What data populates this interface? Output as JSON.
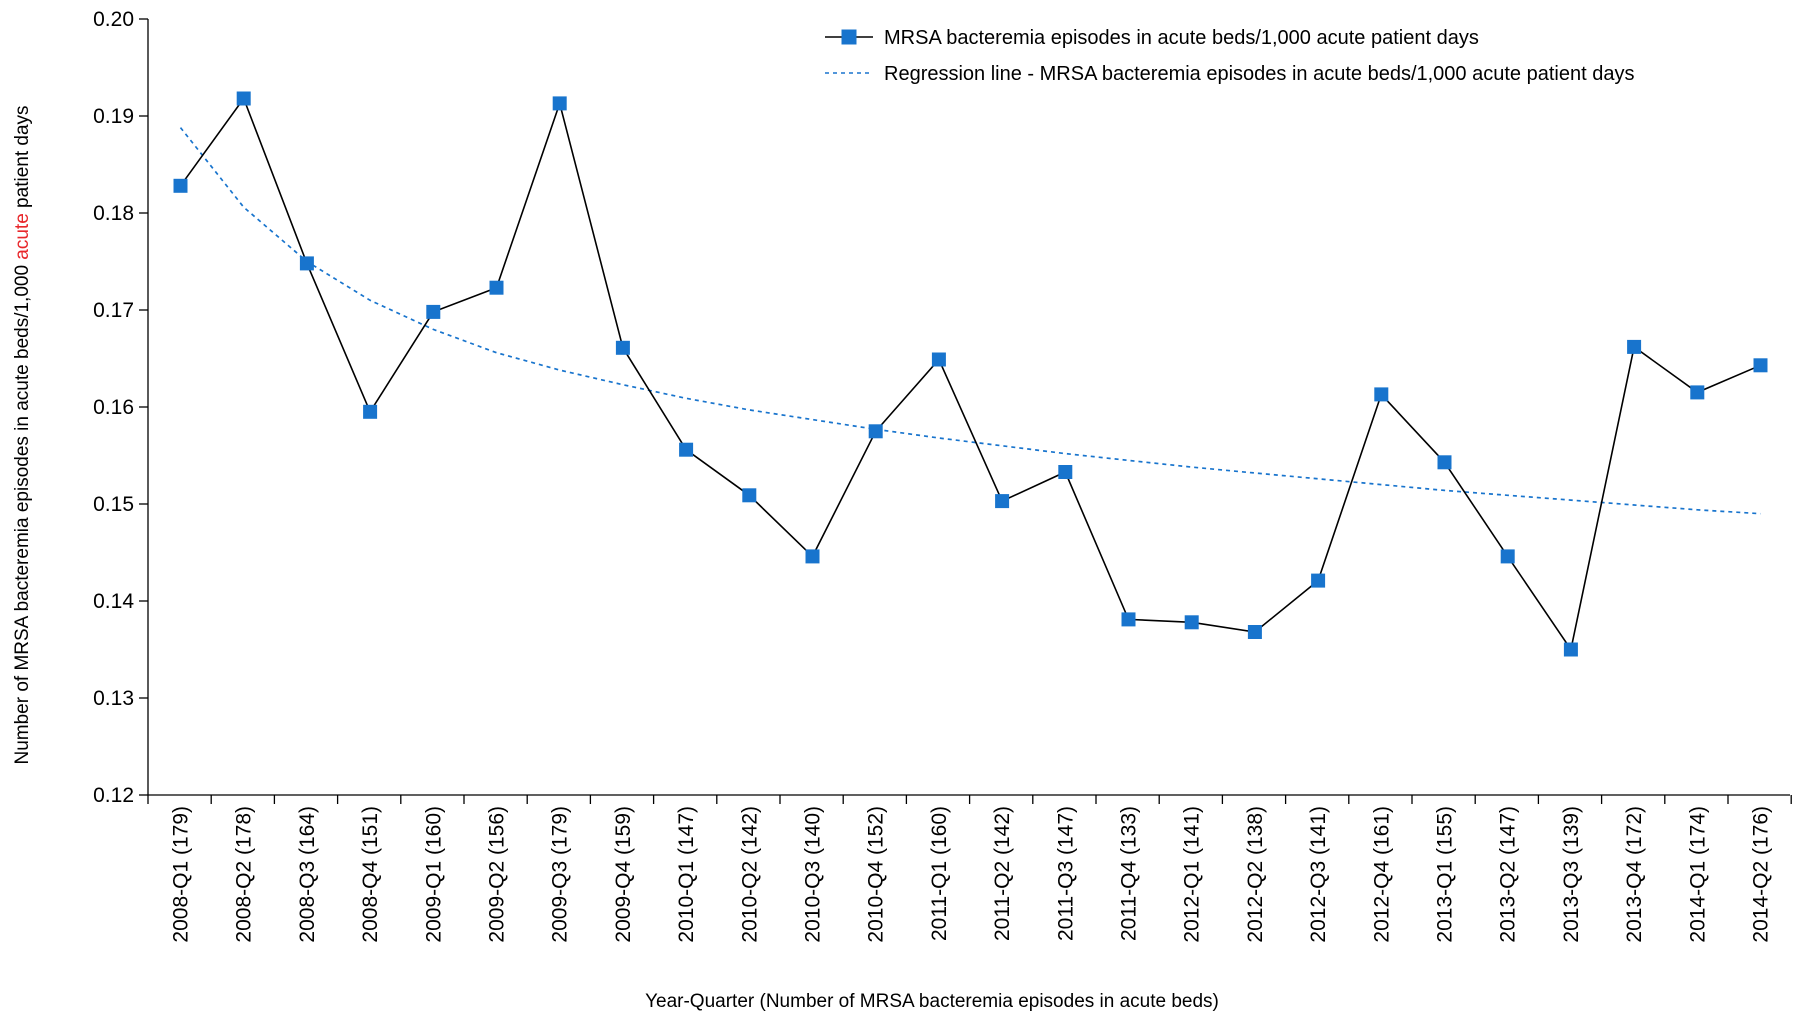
{
  "chart_data": {
    "type": "line",
    "ylabel": {
      "before": "Number of MRSA bacteremia episodes in acute beds/1,000 ",
      "highlight": "acute",
      "after": " patient days",
      "highlight_color": "#e8262a"
    },
    "xlabel": "Year-Quarter (Number of MRSA bacteremia episodes in acute beds)",
    "ylim": [
      0.12,
      0.2
    ],
    "yticks": [
      "0.12",
      "0.13",
      "0.14",
      "0.15",
      "0.16",
      "0.17",
      "0.18",
      "0.19",
      "0.20"
    ],
    "grid": false,
    "legend_position": "top-right",
    "categories": [
      "2008-Q1 (179)",
      "2008-Q2 (178)",
      "2008-Q3 (164)",
      "2008-Q4 (151)",
      "2009-Q1 (160)",
      "2009-Q2 (156)",
      "2009-Q3 (179)",
      "2009-Q4 (159)",
      "2010-Q1 (147)",
      "2010-Q2 (142)",
      "2010-Q3 (140)",
      "2010-Q4 (152)",
      "2011-Q1 (160)",
      "2011-Q2 (142)",
      "2011-Q3 (147)",
      "2011-Q4 (133)",
      "2012-Q1 (141)",
      "2012-Q2 (138)",
      "2012-Q3 (141)",
      "2012-Q4 (161)",
      "2013-Q1 (155)",
      "2013-Q2 (147)",
      "2013-Q3 (139)",
      "2013-Q4 (172)",
      "2014-Q1 (174)",
      "2014-Q2 (176)"
    ],
    "series": [
      {
        "name": "MRSA bacteremia episodes in acute beds/1,000 acute patient days",
        "style": "solid-line-square-markers",
        "line_color": "#000000",
        "marker_color": "#1874cd",
        "values": [
          0.1828,
          0.1918,
          0.1748,
          0.1595,
          0.1698,
          0.1723,
          0.1913,
          0.1661,
          0.1556,
          0.1509,
          0.1446,
          0.1575,
          0.1649,
          0.1503,
          0.1533,
          0.1381,
          0.1378,
          0.1368,
          0.1421,
          0.1613,
          0.1543,
          0.1446,
          0.135,
          0.1662,
          0.1615,
          0.1643
        ]
      },
      {
        "name": "Regression line - MRSA bacteremia episodes in acute beds/1,000 acute patient days",
        "style": "dashed-line",
        "line_color": "#1874cd",
        "values": [
          0.1888,
          0.1806,
          0.175,
          0.171,
          0.168,
          0.1656,
          0.1638,
          0.1623,
          0.1609,
          0.1597,
          0.1587,
          0.1577,
          0.1568,
          0.156,
          0.1552,
          0.1545,
          0.1538,
          0.1532,
          0.1526,
          0.152,
          0.1514,
          0.1509,
          0.1504,
          0.1499,
          0.1494,
          0.149
        ]
      }
    ]
  }
}
